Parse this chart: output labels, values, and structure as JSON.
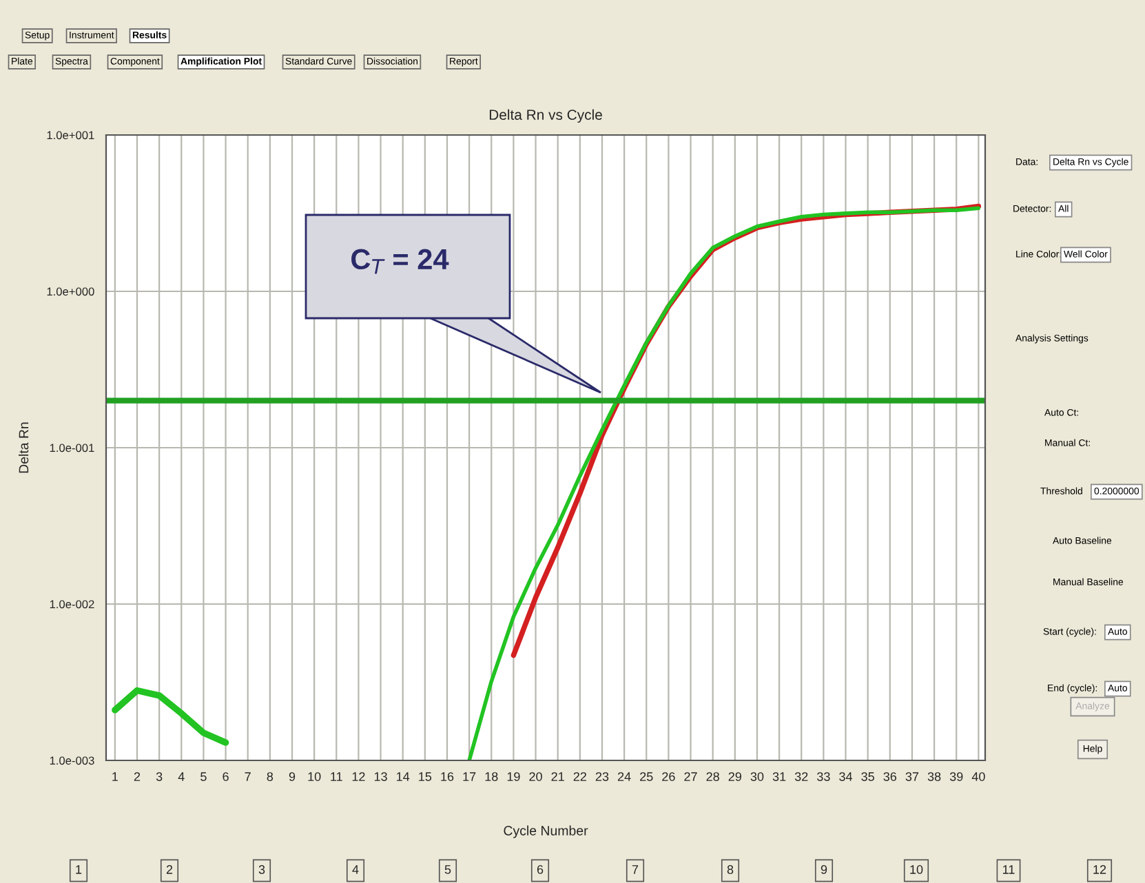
{
  "chart_data": {
    "type": "line",
    "title": "Delta Rn vs Cycle",
    "xlabel": "Cycle Number",
    "ylabel": "Delta Rn",
    "log": "y",
    "xlim": [
      0.6,
      40.3
    ],
    "ylim": [
      0.001,
      10
    ],
    "xticks": [
      1,
      2,
      3,
      4,
      5,
      6,
      7,
      8,
      9,
      10,
      11,
      12,
      13,
      14,
      15,
      16,
      17,
      18,
      19,
      20,
      21,
      22,
      23,
      24,
      25,
      26,
      27,
      28,
      29,
      30,
      31,
      32,
      33,
      34,
      35,
      36,
      37,
      38,
      39,
      40
    ],
    "yticks": [
      {
        "value": 10,
        "label": "1.0e+001"
      },
      {
        "value": 1,
        "label": "1.0e+000"
      },
      {
        "value": 0.1,
        "label": "1.0e-001"
      },
      {
        "value": 0.01,
        "label": "1.0e-002"
      },
      {
        "value": 0.001,
        "label": "1.0e-003"
      }
    ],
    "grid": true,
    "series": [
      {
        "color": "#22c322",
        "x": [
          1,
          2,
          3,
          4,
          5,
          6
        ],
        "values": [
          0.0021,
          0.0028,
          0.0026,
          0.002,
          0.0015,
          0.0013
        ]
      },
      {
        "color": "#d42020",
        "x": [
          19,
          20,
          21,
          22,
          23,
          24,
          25,
          26,
          27,
          28,
          29,
          30,
          31,
          32,
          33,
          34,
          35,
          36,
          37,
          38,
          39,
          40
        ],
        "values": [
          0.0047,
          0.011,
          0.023,
          0.051,
          0.12,
          0.24,
          0.46,
          0.8,
          1.25,
          1.85,
          2.2,
          2.55,
          2.75,
          2.9,
          3.0,
          3.1,
          3.15,
          3.2,
          3.25,
          3.3,
          3.35,
          3.5
        ]
      },
      {
        "color": "#22c322",
        "x": [
          17,
          18,
          19,
          20,
          21,
          22,
          23,
          24,
          25,
          26,
          27,
          28,
          29,
          30,
          31,
          32,
          33,
          34,
          35,
          36,
          37,
          38,
          39,
          40
        ],
        "values": [
          0.001,
          0.0032,
          0.0083,
          0.017,
          0.032,
          0.066,
          0.13,
          0.25,
          0.47,
          0.81,
          1.3,
          1.9,
          2.25,
          2.6,
          2.8,
          3.0,
          3.1,
          3.15,
          3.2,
          3.2,
          3.25,
          3.3,
          3.3,
          3.4
        ]
      }
    ],
    "ref_lines": [
      {
        "axis": "y",
        "value": 0.2,
        "color": "#22a022"
      }
    ],
    "annotations": [
      "C$_{T}$ = 24",
      "Setup",
      "Instrument",
      "Results",
      "Plate",
      "Spectra",
      "Component",
      "Amplification Plot",
      "Standard Curve",
      "Dissociation",
      "Report",
      "Data:",
      "Delta Rn vs Cycle",
      "Detector:",
      "All",
      "Line Color:",
      "Well Color",
      "Analysis Settings",
      "Auto Ct:",
      "Manual Ct:",
      "Threshold",
      "0.2000000",
      "Auto Baseline",
      "Manual Baseline",
      "Start (cycle):",
      "Auto",
      "End (cycle):",
      "Auto",
      "Analyze",
      "Help",
      "1",
      "2",
      "3",
      "4",
      "5",
      "6",
      "7",
      "8",
      "9",
      "10",
      "11",
      "12"
    ]
  }
}
